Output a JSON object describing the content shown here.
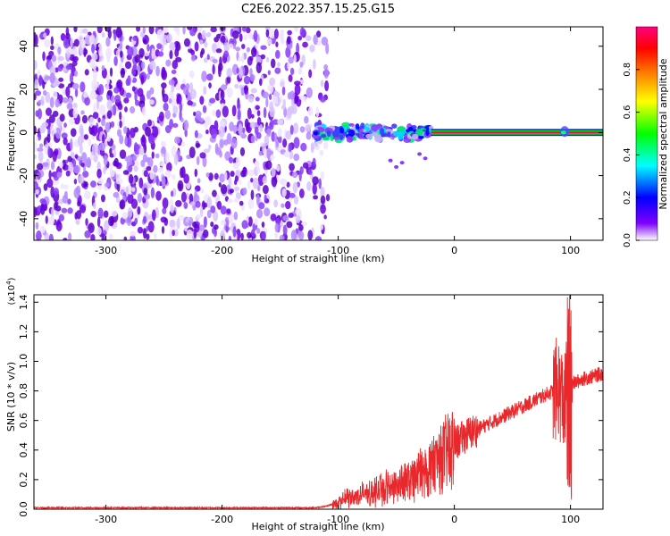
{
  "title": "C2E6.2022.357.15.25.G15",
  "colors": {
    "snr_line": "#e8282b",
    "axis": "#000000",
    "scatter_purple": "#6a00e0"
  },
  "chart_data": [
    {
      "type": "heatmap",
      "xlabel": "Height of straight line (km)",
      "ylabel": "Frequency (Hz)",
      "xlim": [
        -362,
        128
      ],
      "ylim": [
        -50,
        49
      ],
      "x_ticks": [
        -300,
        -200,
        -100,
        0,
        100
      ],
      "y_ticks": [
        -40,
        -20,
        0,
        20,
        40
      ],
      "x_tick_labels": [
        "-300",
        "-200",
        "-100",
        "0",
        "100"
      ],
      "y_tick_labels": [
        "-40",
        "-20",
        "0",
        "20",
        "40"
      ],
      "colorbar": {
        "label": "Normalized spectral amplitude",
        "range": [
          0.0,
          1.0
        ],
        "ticks": [
          0.0,
          0.2,
          0.4,
          0.6,
          0.8
        ],
        "tick_labels": [
          "0.0",
          "0.2",
          "0.4",
          "0.6",
          "0.8"
        ],
        "colormap": [
          "#ffffff",
          "#7f00ff",
          "#0000ff",
          "#00ffff",
          "#00ff00",
          "#ffff00",
          "#ff8000",
          "#ff0000",
          "#ff0080"
        ]
      },
      "regions": [
        {
          "description_key": "noise",
          "x_range": [
            -362,
            -108
          ],
          "y_range": [
            -50,
            49
          ],
          "amplitude": 0.1
        },
        {
          "description_key": "transition",
          "x_range": [
            -120,
            -20
          ],
          "y_range": [
            -10,
            10
          ],
          "amplitude": 0.45
        },
        {
          "description_key": "carrier",
          "x_range": [
            -20,
            128
          ],
          "y_range": [
            -1,
            1
          ],
          "amplitude": 0.95
        },
        {
          "description_key": "blip",
          "x_range": [
            90,
            100
          ],
          "y_range": [
            -3,
            4
          ],
          "amplitude": 0.4
        }
      ]
    },
    {
      "type": "line",
      "xlabel": "Height of straight line (km)",
      "ylabel": "SNR (10 * v/v)",
      "y_multiplier_label": "(x10",
      "y_multiplier_exp": "4",
      "y_multiplier_close": ")",
      "xlim": [
        -362,
        128
      ],
      "ylim": [
        0,
        1.45
      ],
      "x_ticks": [
        -300,
        -200,
        -100,
        0,
        100
      ],
      "y_ticks": [
        0.0,
        0.2,
        0.4,
        0.6,
        0.8,
        1.0,
        1.2,
        1.4
      ],
      "x_tick_labels": [
        "-300",
        "-200",
        "-100",
        "0",
        "100"
      ],
      "y_tick_labels": [
        "0.0",
        "0.2",
        "0.4",
        "0.6",
        "0.8",
        "1.0",
        "1.2",
        "1.4"
      ],
      "series": [
        {
          "x": [
            -362,
            -300,
            -200,
            -120,
            -110,
            -100,
            -90,
            -80,
            -70,
            -60,
            -50,
            -40,
            -30,
            -20,
            -10,
            0,
            10,
            20,
            30,
            40,
            50,
            60,
            70,
            80,
            85,
            90,
            95,
            98,
            100,
            102,
            105,
            110,
            120,
            128
          ],
          "y": [
            0.01,
            0.01,
            0.01,
            0.01,
            0.02,
            0.05,
            0.08,
            0.1,
            0.12,
            0.15,
            0.18,
            0.2,
            0.25,
            0.3,
            0.38,
            0.44,
            0.5,
            0.54,
            0.58,
            0.62,
            0.66,
            0.7,
            0.74,
            0.78,
            0.8,
            0.82,
            0.7,
            0.95,
            1.4,
            0.85,
            0.86,
            0.88,
            0.9,
            0.92
          ]
        }
      ]
    }
  ]
}
